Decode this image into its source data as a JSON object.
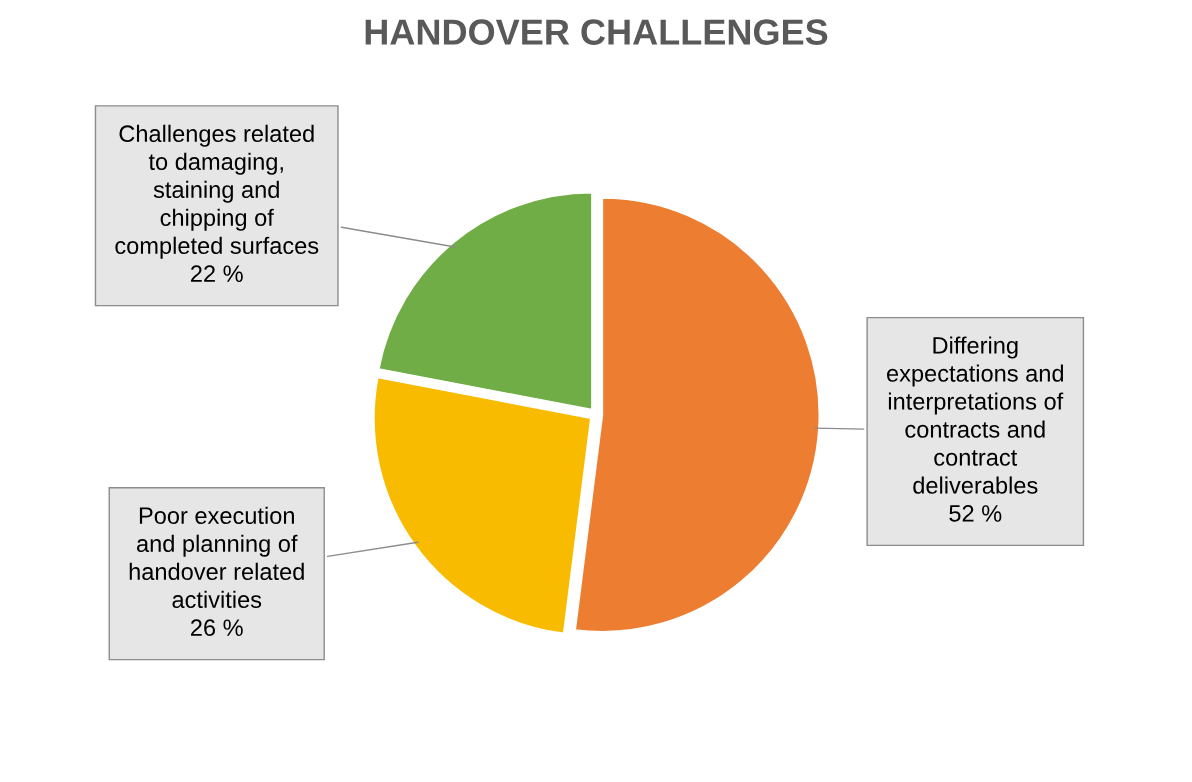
{
  "chart_data": {
    "type": "pie",
    "title": "HANDOVER CHALLENGES",
    "categories": [
      "Differing\nexpectations and\ninterpretations of\ncontracts and\ncontract\ndeliverables",
      "Poor execution\nand planning of\nhandover related\nactivities",
      "Challenges related\nto damaging,\nstaining and\nchipping of\ncompleted surfaces"
    ],
    "values": [
      52,
      26,
      22
    ],
    "value_labels": [
      "52 %",
      "26 %",
      "22 %"
    ],
    "colors": [
      "#ed7d31",
      "#f9bb00",
      "#70ad47"
    ],
    "legend": false
  }
}
